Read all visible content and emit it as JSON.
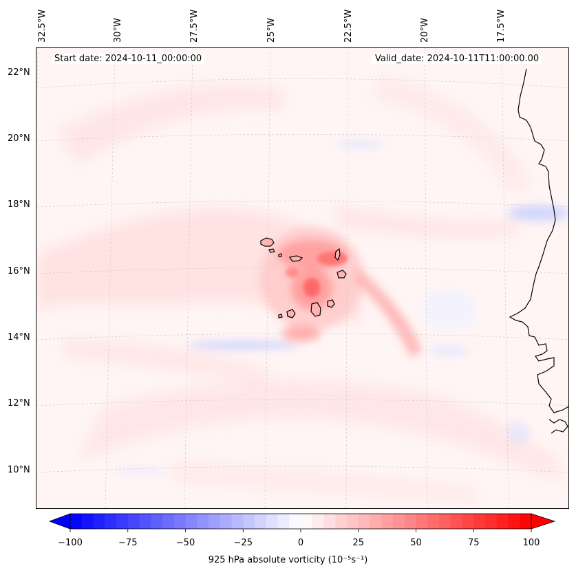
{
  "map": {
    "start_label": "Start date: 2024-10-11_00:00:00",
    "valid_label": "Valid_date: 2024-10-11T11:00:00.00",
    "lon_labels": [
      "32.5°W",
      "30°W",
      "27.5°W",
      "25°W",
      "22.5°W",
      "20°W",
      "17.5°W"
    ],
    "lat_labels": [
      "22°N",
      "20°N",
      "18°N",
      "16°N",
      "14°N",
      "12°N",
      "10°N"
    ],
    "coastline_color": "#000000",
    "gridline_color": "#c8c8c8"
  },
  "colorbar": {
    "min": -100,
    "max": 100,
    "ticks": [
      {
        "value": -100,
        "label": "−100"
      },
      {
        "value": -75,
        "label": "−75"
      },
      {
        "value": -50,
        "label": "−50"
      },
      {
        "value": -25,
        "label": "−25"
      },
      {
        "value": 0,
        "label": "0"
      },
      {
        "value": 25,
        "label": "25"
      },
      {
        "value": 50,
        "label": "50"
      },
      {
        "value": 75,
        "label": "75"
      },
      {
        "value": 100,
        "label": "100"
      }
    ],
    "neg_color": "#0000ff",
    "pos_color": "#ff0000",
    "mid_color": "#ffffff",
    "title": "925 hPa absolute vorticity (10⁻⁵s⁻¹)"
  }
}
